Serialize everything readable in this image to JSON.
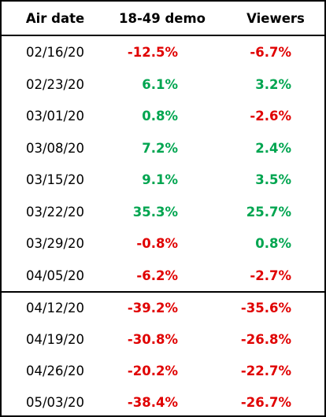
{
  "table": {
    "headers": {
      "air_date": "Air date",
      "demo": "18-49 demo",
      "viewers": "Viewers"
    },
    "rows": [
      {
        "air_date": "02/16/20",
        "demo": "-12.5%",
        "viewers": "-6.7%"
      },
      {
        "air_date": "02/23/20",
        "demo": "6.1%",
        "viewers": "3.2%"
      },
      {
        "air_date": "03/01/20",
        "demo": "0.8%",
        "viewers": "-2.6%"
      },
      {
        "air_date": "03/08/20",
        "demo": "7.2%",
        "viewers": "2.4%"
      },
      {
        "air_date": "03/15/20",
        "demo": "9.1%",
        "viewers": "3.5%"
      },
      {
        "air_date": "03/22/20",
        "demo": "35.3%",
        "viewers": "25.7%"
      },
      {
        "air_date": "03/29/20",
        "demo": "-0.8%",
        "viewers": "0.8%"
      },
      {
        "air_date": "04/05/20",
        "demo": "-6.2%",
        "viewers": "-2.7%"
      },
      {
        "air_date": "04/12/20",
        "demo": "-39.2%",
        "viewers": "-35.6%"
      },
      {
        "air_date": "04/19/20",
        "demo": "-30.8%",
        "viewers": "-26.8%"
      },
      {
        "air_date": "04/26/20",
        "demo": "-20.2%",
        "viewers": "-22.7%"
      },
      {
        "air_date": "05/03/20",
        "demo": "-38.4%",
        "viewers": "-26.7%"
      }
    ]
  },
  "colors": {
    "positive": "#00a550",
    "negative": "#e00000",
    "text": "#000000",
    "rule": "#000000"
  }
}
